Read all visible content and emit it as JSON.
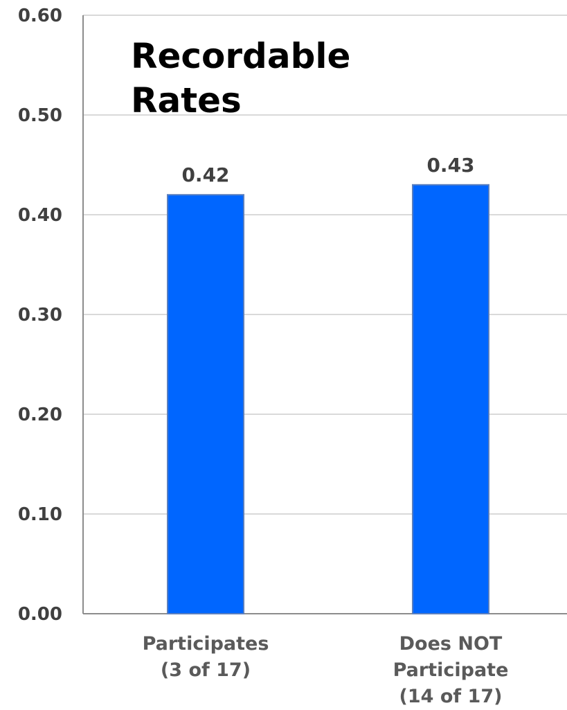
{
  "chart_data": {
    "type": "bar",
    "title_lines": [
      "Recordable",
      "Rates"
    ],
    "categories": [
      [
        "Participates",
        "(3 of 17)"
      ],
      [
        "Does NOT",
        "Participate",
        "(14 of 17)"
      ]
    ],
    "values": [
      0.42,
      0.43
    ],
    "data_labels": [
      "0.42",
      "0.43"
    ],
    "yticks": [
      "0.00",
      "0.10",
      "0.20",
      "0.30",
      "0.40",
      "0.50",
      "0.60"
    ],
    "ylim": [
      0,
      0.6
    ],
    "grid": true,
    "bar_color": "#0066ff",
    "xlabel": "",
    "ylabel": ""
  }
}
